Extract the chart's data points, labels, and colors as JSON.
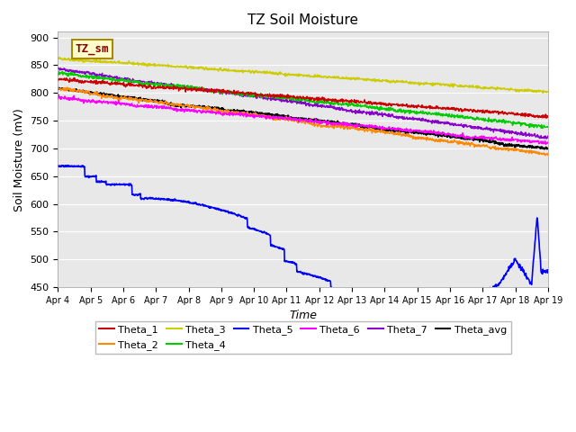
{
  "title": "TZ Soil Moisture",
  "xlabel": "Time",
  "ylabel": "Soil Moisture (mV)",
  "ylim": [
    450,
    910
  ],
  "yticks": [
    450,
    500,
    550,
    600,
    650,
    700,
    750,
    800,
    850,
    900
  ],
  "x_tick_positions": [
    0,
    96,
    192,
    288,
    384,
    480,
    576,
    672,
    768,
    864,
    960,
    1056,
    1152,
    1248,
    1344,
    1440
  ],
  "x_labels": [
    "Apr 4",
    "Apr 5",
    "Apr 6",
    "Apr 7",
    "Apr 8",
    "Apr 9",
    "Apr 10",
    "Apr 11",
    "Apr 12",
    "Apr 13",
    "Apr 14",
    "Apr 15",
    "Apr 16",
    "Apr 17",
    "Apr 18",
    "Apr 19"
  ],
  "n_points": 1441,
  "series_colors": {
    "Theta_1": "#cc0000",
    "Theta_2": "#ff8800",
    "Theta_3": "#cccc00",
    "Theta_4": "#00cc00",
    "Theta_5": "#0000ff",
    "Theta_6": "#ff00ff",
    "Theta_7": "#8800cc",
    "Theta_avg": "#000000"
  },
  "legend_box_text": "TZ_sm",
  "legend_box_bg": "#ffffcc",
  "legend_box_border": "#aa8800",
  "bg_color": "#e8e8e8",
  "title_fontsize": 11,
  "axis_label_fontsize": 9,
  "tick_fontsize": 8
}
